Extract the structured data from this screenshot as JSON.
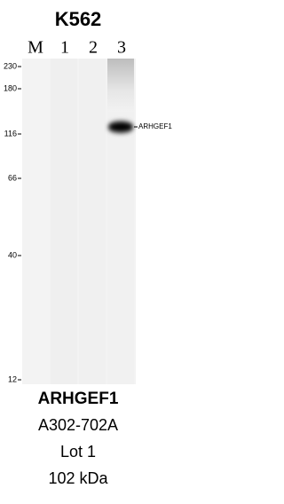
{
  "header": {
    "title": "K562"
  },
  "lanes": [
    "M",
    "1",
    "2",
    "3"
  ],
  "markers": [
    230,
    180,
    116,
    66,
    40,
    12
  ],
  "band_label": "ARHGEF1",
  "footer": {
    "target": "ARHGEF1",
    "catalog": "A302-702A",
    "lot": "Lot 1",
    "mw": "102 kDa"
  }
}
